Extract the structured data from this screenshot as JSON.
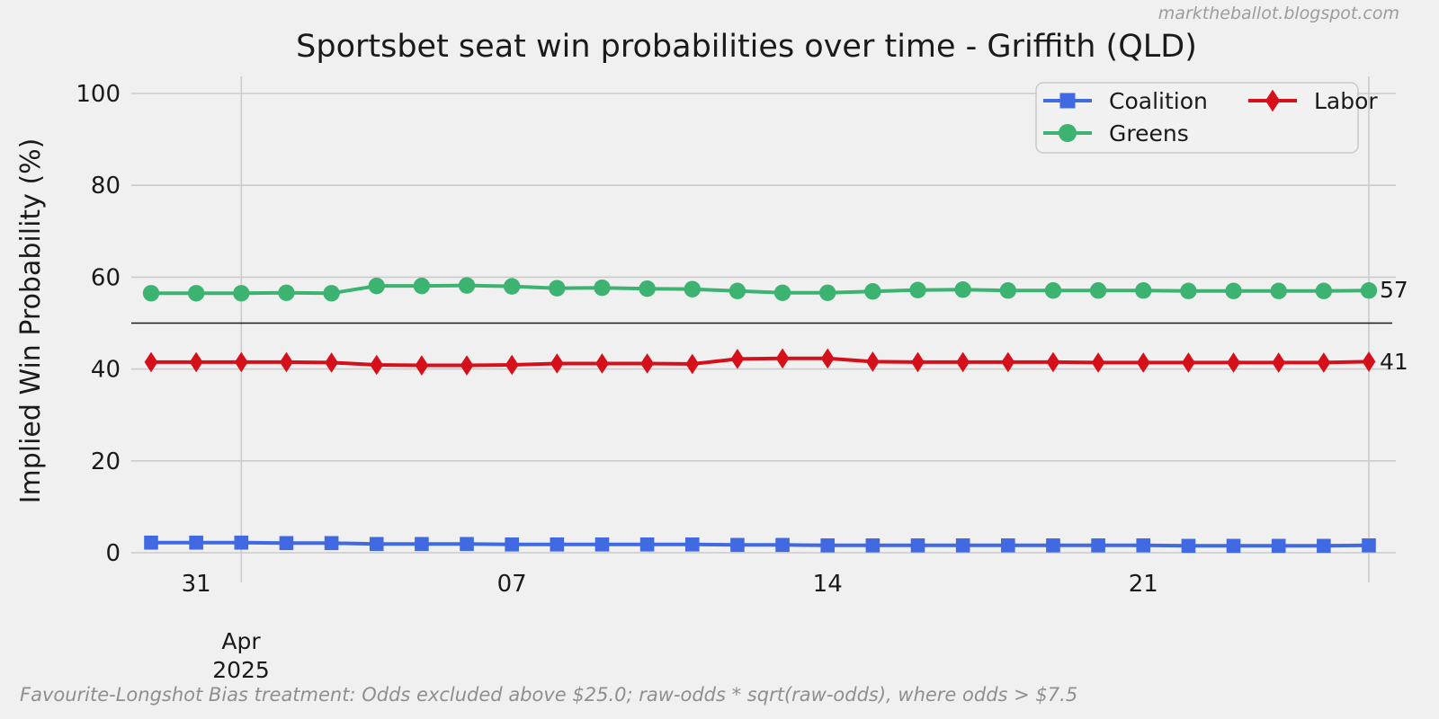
{
  "chart_data": {
    "type": "line",
    "title": "Sportsbet seat win probabilities over time - Griffith (QLD)",
    "watermark": "marktheballot.blogspot.com",
    "ylabel": "Implied Win Probability (%)",
    "ylim": [
      0,
      100
    ],
    "yticks": [
      0,
      20,
      40,
      60,
      80,
      100
    ],
    "reference_line": 50,
    "grid": "on",
    "legend_position": "upper right",
    "x_start_date": "31 Mar 2025 is day index 1; 28 daily points (30 Mar - 26 Apr 2025)",
    "xticks": [
      {
        "label": "31",
        "day": 1
      },
      {
        "label": "07",
        "day": 8
      },
      {
        "label": "14",
        "day": 15
      },
      {
        "label": "21",
        "day": 22
      }
    ],
    "month_tick": {
      "line1": "Apr",
      "line2": "2025",
      "day": 2
    },
    "vertical_grid_days": [
      2,
      27
    ],
    "series": [
      {
        "name": "Coalition",
        "color": "#4169e1",
        "marker": "square",
        "values": [
          2.2,
          2.2,
          2.2,
          2.1,
          2.1,
          1.9,
          1.9,
          1.9,
          1.8,
          1.8,
          1.8,
          1.8,
          1.8,
          1.7,
          1.7,
          1.6,
          1.6,
          1.6,
          1.6,
          1.6,
          1.6,
          1.6,
          1.6,
          1.5,
          1.5,
          1.5,
          1.5,
          1.6
        ]
      },
      {
        "name": "Greens",
        "color": "#3cb371",
        "marker": "circle",
        "values": [
          56.5,
          56.5,
          56.5,
          56.6,
          56.5,
          58.1,
          58.1,
          58.2,
          58.0,
          57.6,
          57.7,
          57.5,
          57.4,
          57.0,
          56.6,
          56.6,
          56.9,
          57.2,
          57.3,
          57.1,
          57.1,
          57.1,
          57.1,
          57.0,
          57.0,
          57.0,
          57.0,
          57.1
        ]
      },
      {
        "name": "Labor",
        "color": "#d6101a",
        "marker": "diamond",
        "values": [
          41.5,
          41.5,
          41.5,
          41.5,
          41.4,
          40.9,
          40.8,
          40.8,
          40.9,
          41.2,
          41.2,
          41.2,
          41.1,
          42.2,
          42.3,
          42.3,
          41.6,
          41.5,
          41.5,
          41.5,
          41.5,
          41.4,
          41.4,
          41.4,
          41.4,
          41.4,
          41.4,
          41.6
        ]
      }
    ],
    "legend_order": [
      "Coalition",
      "Labor",
      "Greens"
    ],
    "end_labels": {
      "greens": "57",
      "labor": "41"
    },
    "footnote": "Favourite-Longshot Bias treatment: Odds excluded above $25.0; raw-odds * sqrt(raw-odds), where odds > $7.5"
  }
}
